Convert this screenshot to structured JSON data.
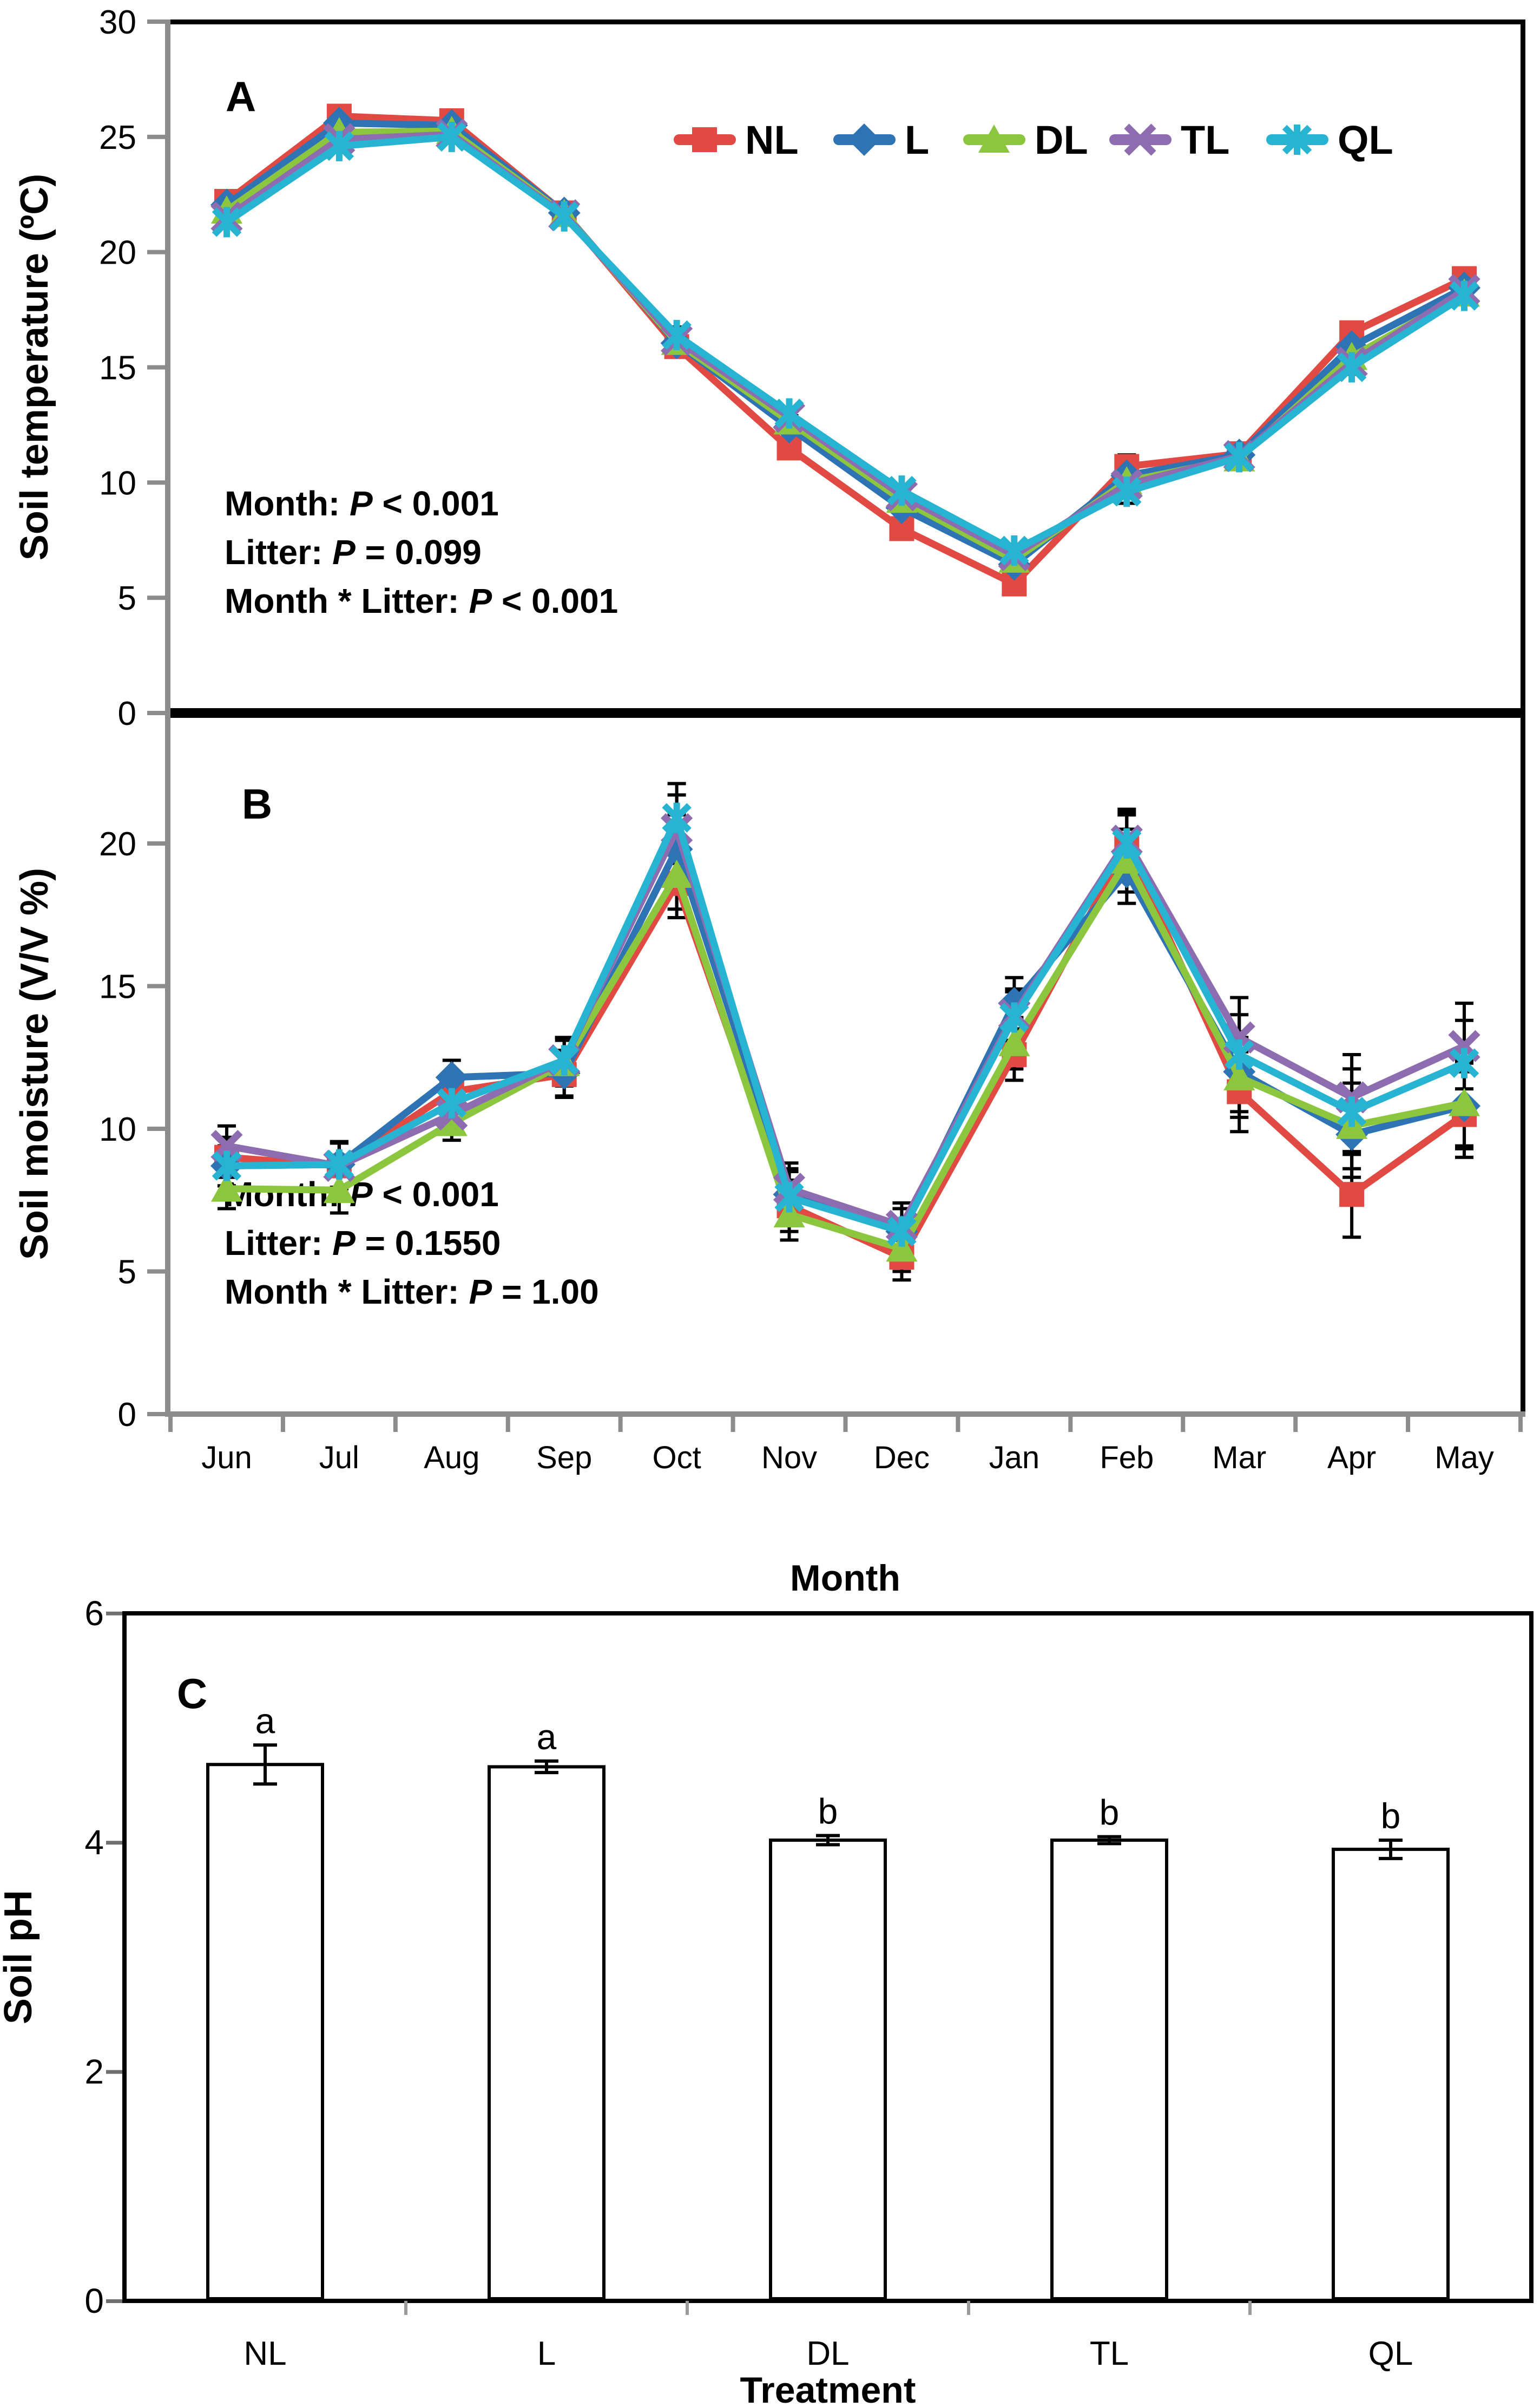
{
  "chart_data": [
    {
      "type": "line",
      "panel_label": "A",
      "ylabel": "Soil temperature (ºC)",
      "ylim": [
        0,
        30
      ],
      "yticks": [
        0,
        5,
        10,
        15,
        20,
        25,
        30
      ],
      "categories": [
        "Jun",
        "Jul",
        "Aug",
        "Sep",
        "Oct",
        "Nov",
        "Dec",
        "Jan",
        "Feb",
        "Mar",
        "Apr",
        "May"
      ],
      "series": [
        {
          "name": "NL",
          "values": [
            22.2,
            25.9,
            25.7,
            21.7,
            15.9,
            11.5,
            8.0,
            5.6,
            10.7,
            11.25,
            16.5,
            18.85
          ]
        },
        {
          "name": "L",
          "values": [
            22.05,
            25.6,
            25.5,
            21.7,
            16.05,
            12.4,
            8.9,
            6.45,
            10.3,
            11.2,
            15.9,
            18.45
          ]
        },
        {
          "name": "DL",
          "values": [
            21.8,
            25.2,
            25.25,
            21.65,
            16.1,
            12.65,
            9.25,
            6.65,
            10.05,
            11.05,
            15.45,
            18.2
          ]
        },
        {
          "name": "TL",
          "values": [
            21.5,
            24.9,
            25.1,
            21.6,
            16.2,
            12.85,
            9.45,
            6.85,
            9.9,
            11.15,
            15.2,
            18.35
          ]
        },
        {
          "name": "QL",
          "values": [
            21.3,
            24.6,
            25.0,
            21.55,
            16.4,
            13.0,
            9.65,
            7.05,
            9.6,
            11.1,
            15.0,
            18.1
          ]
        }
      ],
      "se": [
        0.15,
        0.2,
        0.2,
        0.3,
        0.35,
        0.25,
        0.2,
        0.15,
        0.5,
        0.2,
        0.3,
        0.3
      ],
      "annotation_lines": [
        [
          "Month: ",
          "P",
          " < 0.001"
        ],
        [
          "Litter: ",
          "P",
          " = 0.099"
        ],
        [
          "Month * Litter: ",
          "P",
          " < 0.001"
        ]
      ]
    },
    {
      "type": "line",
      "panel_label": "B",
      "ylabel": "Soil moisture (V/V %)",
      "xlabel": "Month",
      "ylim": [
        0,
        25
      ],
      "yticks": [
        0,
        5,
        10,
        15,
        20
      ],
      "categories": [
        "Jun",
        "Jul",
        "Aug",
        "Sep",
        "Oct",
        "Nov",
        "Dec",
        "Jan",
        "Feb",
        "Mar",
        "Apr",
        "May"
      ],
      "series": [
        {
          "name": "NL",
          "values": [
            9.0,
            8.7,
            11.3,
            11.9,
            18.6,
            7.3,
            5.5,
            12.6,
            19.9,
            11.3,
            7.7,
            10.5
          ]
        },
        {
          "name": "L",
          "values": [
            8.7,
            8.75,
            11.8,
            11.95,
            19.8,
            7.7,
            6.4,
            14.4,
            19.0,
            12.0,
            9.8,
            10.8
          ]
        },
        {
          "name": "DL",
          "values": [
            7.9,
            7.85,
            10.2,
            12.3,
            18.9,
            7.0,
            5.8,
            13.0,
            19.4,
            11.8,
            10.1,
            10.9
          ]
        },
        {
          "name": "TL",
          "values": [
            9.4,
            8.7,
            10.5,
            12.4,
            20.5,
            7.9,
            6.6,
            14.0,
            20.1,
            13.2,
            11.1,
            12.9
          ]
        },
        {
          "name": "QL",
          "values": [
            8.7,
            8.75,
            10.9,
            12.4,
            20.9,
            7.6,
            6.4,
            13.9,
            20.0,
            12.6,
            10.6,
            12.3
          ]
        }
      ],
      "se": [
        0.7,
        0.8,
        0.6,
        0.8,
        1.2,
        0.9,
        0.8,
        0.9,
        1.1,
        1.4,
        1.5,
        1.5
      ],
      "annotation_lines": [
        [
          "Month: ",
          "P",
          " < 0.001"
        ],
        [
          "Litter: ",
          "P",
          " = 0.1550"
        ],
        [
          "Month * Litter: ",
          "P",
          " = 1.00"
        ]
      ]
    },
    {
      "type": "bar",
      "panel_label": "C",
      "ylabel": "Soil pH",
      "xlabel": "Treatment",
      "ylim": [
        0,
        6
      ],
      "yticks": [
        0,
        2,
        4,
        6
      ],
      "categories": [
        "NL",
        "L",
        "DL",
        "TL",
        "QL"
      ],
      "values": [
        4.68,
        4.66,
        4.02,
        4.02,
        3.94
      ],
      "se": [
        0.17,
        0.05,
        0.04,
        0.03,
        0.08
      ],
      "sig_letters": [
        "a",
        "a",
        "b",
        "b",
        "b"
      ],
      "bar_fill": "#ffffff",
      "bar_stroke": "#000000"
    }
  ],
  "legend": {
    "items": [
      {
        "label": "NL",
        "color": "#e04a42",
        "marker": "square"
      },
      {
        "label": "L",
        "color": "#2e74b5",
        "marker": "diamond"
      },
      {
        "label": "DL",
        "color": "#8cc63e",
        "marker": "triangle"
      },
      {
        "label": "TL",
        "color": "#8e6cb0",
        "marker": "x"
      },
      {
        "label": "QL",
        "color": "#27b4d3",
        "marker": "asterisk"
      }
    ]
  },
  "colors": {
    "axis_gray": "#8c8c8c",
    "frame_black": "#000000",
    "error_bar": "#000000",
    "text": "#000000"
  }
}
